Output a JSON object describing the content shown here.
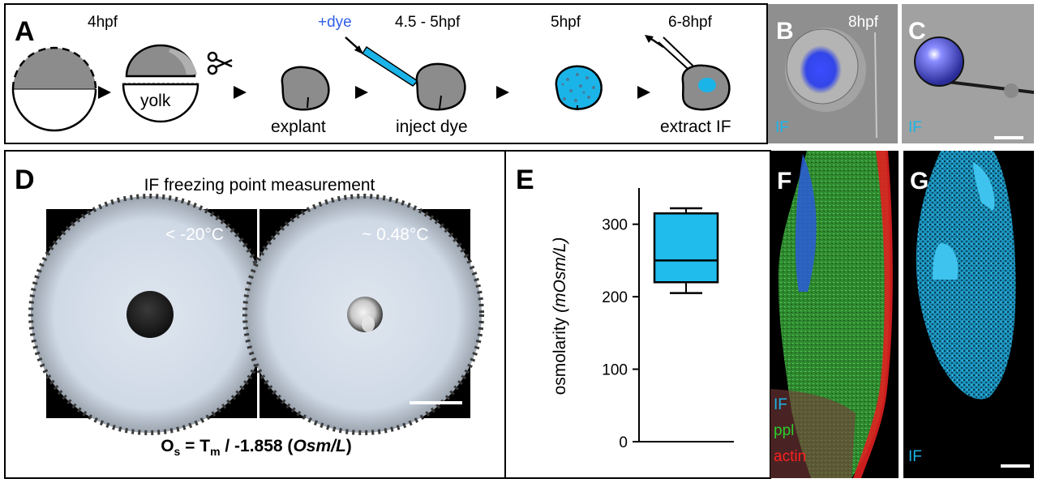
{
  "colors": {
    "dye_blue": "#2f5fe8",
    "if_cyan": "#1bb4e8",
    "cell_gray": "#8c8c8c",
    "box_fill": "#1fbcec",
    "ppl_green": "#2ecc2e",
    "actin_red": "#ff2020"
  },
  "panel_a": {
    "letter": "A",
    "stage1": "4hpf",
    "yolk": "yolk",
    "dye": "+dye",
    "stage3": "4.5 - 5hpf",
    "stage4": "5hpf",
    "stage5": "6-8hpf",
    "explant": "explant",
    "inject": "inject dye",
    "extract": "extract IF",
    "scissors_icon": "scissors-icon",
    "arrow_icon": "right-triangle-arrow-icon"
  },
  "panel_b": {
    "letter": "B",
    "time": "8hpf",
    "label": "IF"
  },
  "panel_c": {
    "letter": "C",
    "label": "IF"
  },
  "panel_d": {
    "letter": "D",
    "title": "IF freezing point measurement",
    "temp_left": "< -20°C",
    "temp_right": "~ 0.48°C",
    "formula_o": "O",
    "formula_s": "s",
    "formula_eq": " = T",
    "formula_m": "m",
    "formula_div": " / -1.858 (",
    "formula_unit": "Osm/L",
    "formula_close": ")"
  },
  "panel_e": {
    "letter": "E"
  },
  "panel_f": {
    "letter": "F",
    "label_if": "IF",
    "label_ppl": "ppl",
    "label_actin": "actin"
  },
  "panel_g": {
    "letter": "G",
    "label": "IF"
  },
  "chart_data": {
    "type": "box",
    "ylabel_main": "osmolarity ",
    "ylabel_unit": "(mOsm/L)",
    "ylim": [
      0,
      350
    ],
    "yticks": [
      "0",
      "100",
      "200",
      "300"
    ],
    "box": {
      "min": 205,
      "q1": 220,
      "median": 250,
      "q3": 315,
      "max": 322
    },
    "grid": false
  }
}
